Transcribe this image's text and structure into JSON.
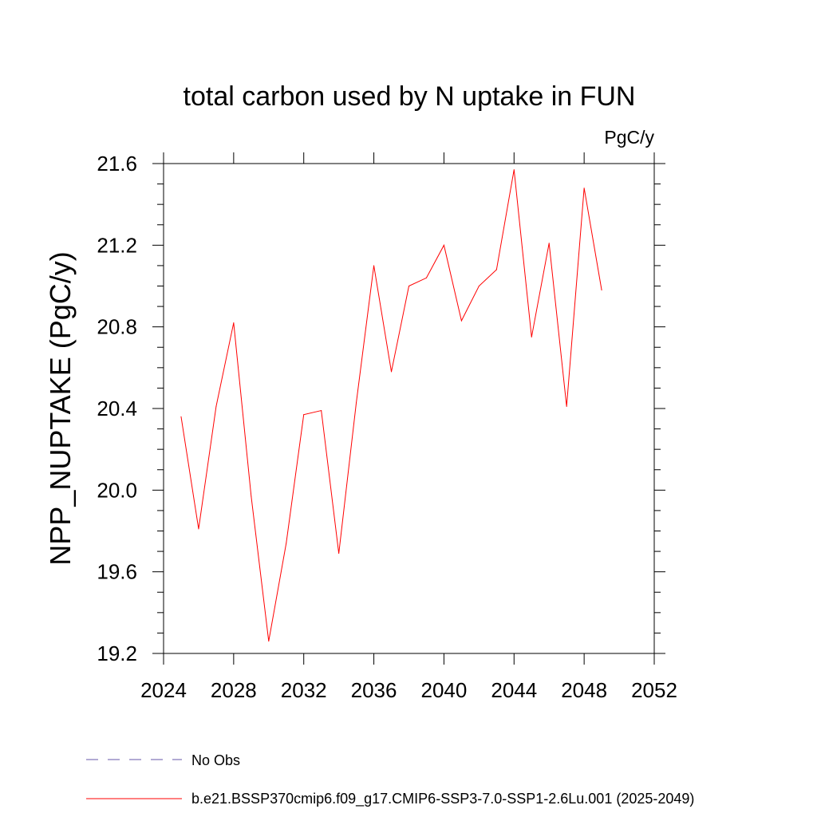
{
  "chart_data": {
    "type": "line",
    "title": "total carbon used by N uptake in FUN",
    "units_label": "PgC/y",
    "ylabel": "NPP_NUPTAKE  (PgC/y)",
    "xlabel": "",
    "xlim": [
      2024,
      2052
    ],
    "ylim": [
      19.2,
      21.6
    ],
    "x_ticks": [
      2024,
      2028,
      2032,
      2036,
      2040,
      2044,
      2048,
      2052
    ],
    "y_ticks": [
      19.2,
      19.6,
      20.0,
      20.4,
      20.8,
      21.2,
      21.6
    ],
    "x_tick_labels": [
      "2024",
      "2028",
      "2032",
      "2036",
      "2040",
      "2044",
      "2048",
      "2052"
    ],
    "y_tick_labels": [
      "19.2",
      "19.6",
      "20.0",
      "20.4",
      "20.8",
      "21.2",
      "21.6"
    ],
    "grid": false,
    "legend_position": "bottom-left",
    "series": [
      {
        "name": "b.e21.BSSP370cmip6.f09_g17.CMIP6-SSP3-7.0-SSP1-2.6Lu.001 (2025-2049)",
        "color": "#ff0000",
        "style": "solid",
        "x": [
          2025,
          2026,
          2027,
          2028,
          2029,
          2030,
          2031,
          2032,
          2033,
          2034,
          2035,
          2036,
          2037,
          2038,
          2039,
          2040,
          2041,
          2042,
          2043,
          2044,
          2045,
          2046,
          2047,
          2048,
          2049
        ],
        "values": [
          20.36,
          19.81,
          20.41,
          20.82,
          19.97,
          19.26,
          19.74,
          20.37,
          20.39,
          19.69,
          20.43,
          21.1,
          20.58,
          21.0,
          21.04,
          21.2,
          20.83,
          21.0,
          21.08,
          21.57,
          20.75,
          21.21,
          20.41,
          21.48,
          20.98
        ]
      }
    ],
    "legend": [
      {
        "label": "No Obs",
        "color": "#6655aa",
        "style": "dashed"
      },
      {
        "label": "b.e21.BSSP370cmip6.f09_g17.CMIP6-SSP3-7.0-SSP1-2.6Lu.001 (2025-2049)",
        "color": "#ff0000",
        "style": "solid"
      }
    ]
  }
}
